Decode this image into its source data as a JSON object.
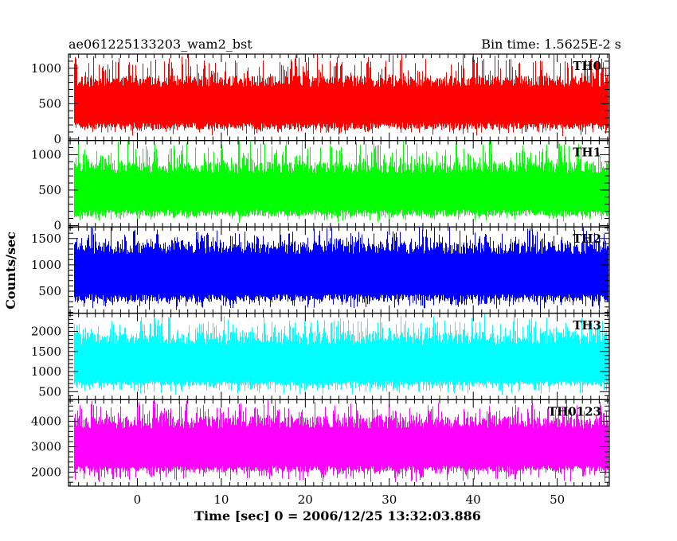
{
  "header": {
    "left_title": "ae061225133203_wam2_bst",
    "right_title": "Bin time: 1.5625E-2 s"
  },
  "chart_data": {
    "type": "line",
    "xlabel": "Time [sec] 0 = 2006/12/25 13:32:03.886",
    "ylabel": "Counts/sec",
    "xlim": [
      -8.2,
      56.2
    ],
    "x_ticks": [
      0,
      10,
      20,
      30,
      40,
      50
    ],
    "x_tick_labels": [
      "0",
      "10",
      "20",
      "30",
      "40",
      "50"
    ],
    "data_range": [
      -7.5,
      56
    ],
    "panels": [
      {
        "name": "TH0",
        "color": "#ff0000",
        "ylim": [
          -20,
          1200
        ],
        "ticks": [
          0,
          500,
          1000
        ],
        "tick_labels": [
          "0",
          "500",
          "1000"
        ],
        "minor_step": 100,
        "mean": 500,
        "low_typical": 140,
        "low_min": 40,
        "high_typical": 900,
        "high_max": 1250
      },
      {
        "name": "TH1",
        "color": "#00ff00",
        "ylim": [
          -20,
          1200
        ],
        "ticks": [
          0,
          500,
          1000
        ],
        "tick_labels": [
          "0",
          "500",
          "1000"
        ],
        "minor_step": 100,
        "mean": 500,
        "low_typical": 130,
        "low_min": 40,
        "high_typical": 900,
        "high_max": 1250
      },
      {
        "name": "TH2",
        "color": "#0000ff",
        "ylim": [
          80,
          1720
        ],
        "ticks": [
          500,
          1000,
          1500
        ],
        "tick_labels": [
          "500",
          "1000",
          "1500"
        ],
        "minor_step": 100,
        "mean": 850,
        "low_typical": 300,
        "low_min": 130,
        "high_typical": 1450,
        "high_max": 1750
      },
      {
        "name": "TH3",
        "color": "#00ffff",
        "ylim": [
          300,
          2450
        ],
        "ticks": [
          500,
          1000,
          1500,
          2000
        ],
        "tick_labels": [
          "500",
          "1000",
          "1500",
          "2000"
        ],
        "minor_step": 100,
        "mean": 1150,
        "low_typical": 650,
        "low_min": 420,
        "high_typical": 2000,
        "high_max": 2500
      },
      {
        "name": "TH0123",
        "color": "#ff00ff",
        "ylim": [
          1450,
          4850
        ],
        "ticks": [
          2000,
          3000,
          4000
        ],
        "tick_labels": [
          "2000",
          "3000",
          "4000"
        ],
        "minor_step": 200,
        "mean": 3000,
        "low_typical": 2000,
        "low_min": 1550,
        "high_typical": 4200,
        "high_max": 4900
      }
    ]
  }
}
